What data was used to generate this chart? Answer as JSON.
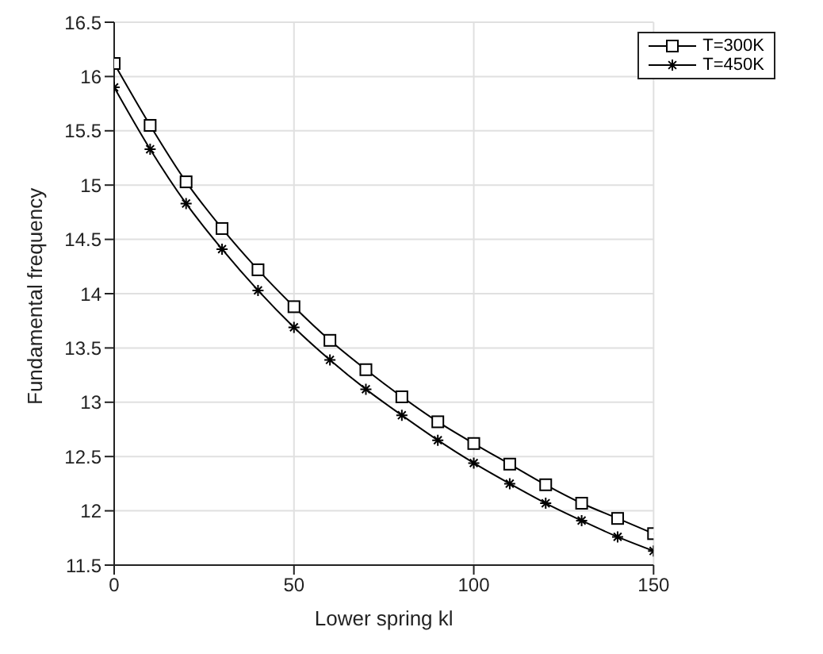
{
  "chart_data": {
    "type": "line",
    "xlabel": "Lower spring kl",
    "ylabel": "Fundamental frequency",
    "x": [
      0,
      10,
      20,
      30,
      40,
      50,
      60,
      70,
      80,
      90,
      100,
      110,
      120,
      130,
      140,
      150
    ],
    "series": [
      {
        "name": "T=300K",
        "color": "#000000",
        "marker": "square",
        "values": [
          16.12,
          15.55,
          15.03,
          14.6,
          14.22,
          13.88,
          13.57,
          13.3,
          13.05,
          12.82,
          12.62,
          12.43,
          12.24,
          12.07,
          11.93,
          11.79
        ]
      },
      {
        "name": "T=450K",
        "color": "#000000",
        "marker": "cross",
        "values": [
          15.9,
          15.33,
          14.83,
          14.41,
          14.03,
          13.69,
          13.39,
          13.12,
          12.88,
          12.65,
          12.44,
          12.25,
          12.07,
          11.91,
          11.76,
          11.63
        ]
      }
    ],
    "xlim": [
      0,
      150
    ],
    "xticks": [
      0,
      50,
      100,
      150
    ],
    "ylim": [
      11.5,
      16.5
    ],
    "yticks": [
      11.5,
      12,
      12.5,
      13,
      13.5,
      14,
      14.5,
      15,
      15.5,
      16,
      16.5
    ],
    "grid": true,
    "legend": "top right",
    "line_style": "solid"
  }
}
